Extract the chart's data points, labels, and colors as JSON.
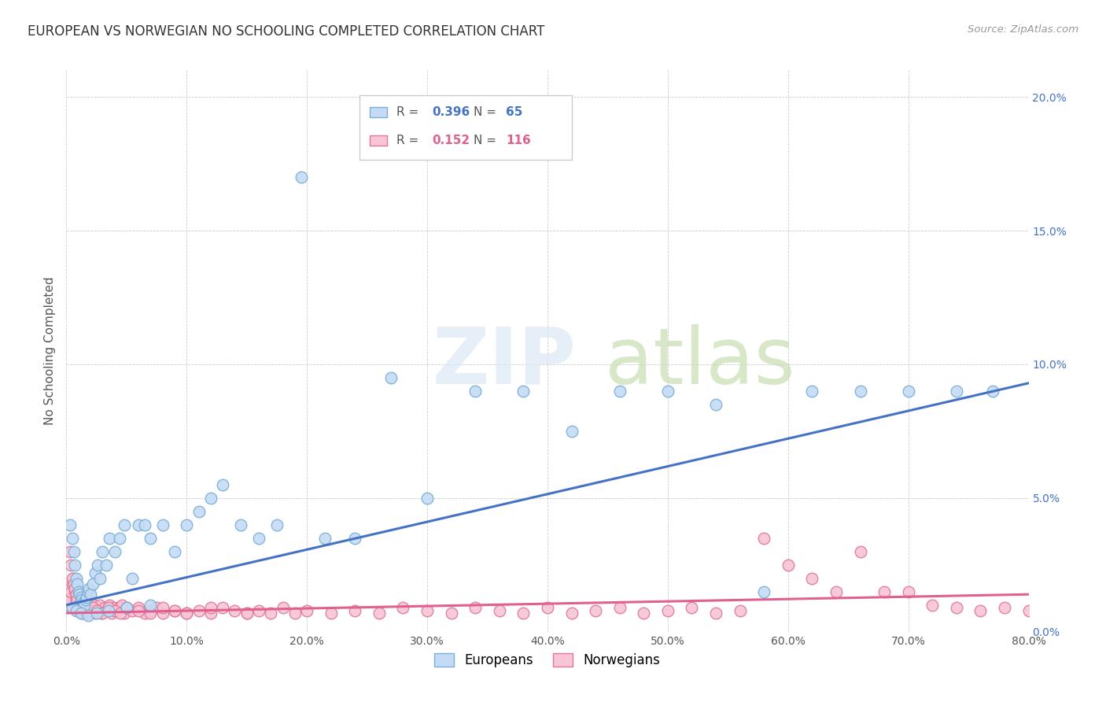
{
  "title": "EUROPEAN VS NORWEGIAN NO SCHOOLING COMPLETED CORRELATION CHART",
  "source": "Source: ZipAtlas.com",
  "xlabel_label": "Europeans",
  "xlabel_label2": "Norwegians",
  "ylabel": "No Schooling Completed",
  "xlim": [
    0,
    0.8
  ],
  "ylim": [
    0,
    0.21
  ],
  "xticks": [
    0.0,
    0.1,
    0.2,
    0.3,
    0.4,
    0.5,
    0.6,
    0.7,
    0.8
  ],
  "xtick_labels": [
    "0.0%",
    "10.0%",
    "20.0%",
    "30.0%",
    "40.0%",
    "50.0%",
    "60.0%",
    "70.0%",
    "80.0%"
  ],
  "yticks": [
    0.0,
    0.05,
    0.1,
    0.15,
    0.2
  ],
  "ytick_labels": [
    "0.0%",
    "5.0%",
    "10.0%",
    "15.0%",
    "20.0%"
  ],
  "europeans_color": "#c5dbf5",
  "europeans_edge_color": "#7bafd4",
  "norwegians_color": "#f7c5d5",
  "norwegians_edge_color": "#e07898",
  "line_blue": "#4472c4",
  "line_pink": "#e06090",
  "background_color": "#ffffff",
  "europeans_x": [
    0.003,
    0.005,
    0.006,
    0.007,
    0.008,
    0.009,
    0.01,
    0.011,
    0.012,
    0.013,
    0.014,
    0.015,
    0.016,
    0.017,
    0.018,
    0.019,
    0.02,
    0.022,
    0.024,
    0.026,
    0.028,
    0.03,
    0.033,
    0.036,
    0.04,
    0.044,
    0.048,
    0.055,
    0.06,
    0.065,
    0.07,
    0.08,
    0.09,
    0.1,
    0.11,
    0.12,
    0.13,
    0.145,
    0.16,
    0.175,
    0.195,
    0.215,
    0.24,
    0.27,
    0.3,
    0.34,
    0.38,
    0.42,
    0.46,
    0.5,
    0.54,
    0.58,
    0.62,
    0.66,
    0.7,
    0.74,
    0.77,
    0.005,
    0.008,
    0.012,
    0.018,
    0.025,
    0.035,
    0.05,
    0.07
  ],
  "europeans_y": [
    0.04,
    0.035,
    0.03,
    0.025,
    0.02,
    0.018,
    0.015,
    0.014,
    0.013,
    0.012,
    0.011,
    0.01,
    0.012,
    0.013,
    0.015,
    0.016,
    0.014,
    0.018,
    0.022,
    0.025,
    0.02,
    0.03,
    0.025,
    0.035,
    0.03,
    0.035,
    0.04,
    0.02,
    0.04,
    0.04,
    0.035,
    0.04,
    0.03,
    0.04,
    0.045,
    0.05,
    0.055,
    0.04,
    0.035,
    0.04,
    0.17,
    0.035,
    0.035,
    0.095,
    0.05,
    0.09,
    0.09,
    0.075,
    0.09,
    0.09,
    0.085,
    0.015,
    0.09,
    0.09,
    0.09,
    0.09,
    0.09,
    0.009,
    0.008,
    0.007,
    0.006,
    0.007,
    0.008,
    0.009,
    0.01
  ],
  "norwegians_x": [
    0.002,
    0.003,
    0.004,
    0.005,
    0.006,
    0.007,
    0.008,
    0.009,
    0.01,
    0.011,
    0.012,
    0.013,
    0.014,
    0.015,
    0.016,
    0.017,
    0.018,
    0.019,
    0.02,
    0.021,
    0.022,
    0.023,
    0.024,
    0.025,
    0.026,
    0.027,
    0.028,
    0.029,
    0.03,
    0.032,
    0.034,
    0.036,
    0.038,
    0.04,
    0.042,
    0.044,
    0.046,
    0.048,
    0.05,
    0.055,
    0.06,
    0.065,
    0.07,
    0.075,
    0.08,
    0.09,
    0.1,
    0.11,
    0.12,
    0.13,
    0.14,
    0.15,
    0.16,
    0.17,
    0.18,
    0.19,
    0.2,
    0.22,
    0.24,
    0.26,
    0.28,
    0.3,
    0.32,
    0.34,
    0.36,
    0.38,
    0.4,
    0.42,
    0.44,
    0.46,
    0.48,
    0.5,
    0.52,
    0.54,
    0.56,
    0.58,
    0.6,
    0.62,
    0.64,
    0.66,
    0.68,
    0.7,
    0.72,
    0.74,
    0.76,
    0.78,
    0.8,
    0.003,
    0.004,
    0.005,
    0.006,
    0.007,
    0.008,
    0.009,
    0.01,
    0.011,
    0.012,
    0.013,
    0.014,
    0.015,
    0.016,
    0.017,
    0.018,
    0.019,
    0.02,
    0.022,
    0.025,
    0.03,
    0.035,
    0.04,
    0.045,
    0.05,
    0.06,
    0.07,
    0.08,
    0.09,
    0.1,
    0.12,
    0.15
  ],
  "norwegians_y": [
    0.01,
    0.012,
    0.015,
    0.018,
    0.02,
    0.015,
    0.012,
    0.01,
    0.008,
    0.009,
    0.01,
    0.011,
    0.009,
    0.013,
    0.008,
    0.009,
    0.01,
    0.011,
    0.008,
    0.009,
    0.008,
    0.01,
    0.007,
    0.009,
    0.008,
    0.009,
    0.01,
    0.007,
    0.008,
    0.009,
    0.008,
    0.01,
    0.007,
    0.009,
    0.008,
    0.009,
    0.01,
    0.007,
    0.009,
    0.008,
    0.009,
    0.007,
    0.008,
    0.009,
    0.007,
    0.008,
    0.007,
    0.008,
    0.007,
    0.009,
    0.008,
    0.007,
    0.008,
    0.007,
    0.009,
    0.007,
    0.008,
    0.007,
    0.008,
    0.007,
    0.009,
    0.008,
    0.007,
    0.009,
    0.008,
    0.007,
    0.009,
    0.007,
    0.008,
    0.009,
    0.007,
    0.008,
    0.009,
    0.007,
    0.008,
    0.035,
    0.025,
    0.02,
    0.015,
    0.03,
    0.015,
    0.015,
    0.01,
    0.009,
    0.008,
    0.009,
    0.008,
    0.03,
    0.025,
    0.02,
    0.018,
    0.016,
    0.014,
    0.012,
    0.01,
    0.009,
    0.008,
    0.007,
    0.009,
    0.008,
    0.007,
    0.009,
    0.008,
    0.007,
    0.008,
    0.009,
    0.008,
    0.007,
    0.009,
    0.008,
    0.007,
    0.009,
    0.008,
    0.007,
    0.009,
    0.008,
    0.007,
    0.009,
    0.007
  ],
  "blue_line_x0": 0.0,
  "blue_line_y0": 0.01,
  "blue_line_x1": 0.8,
  "blue_line_y1": 0.093,
  "pink_line_x0": 0.0,
  "pink_line_y0": 0.007,
  "pink_line_x1": 0.8,
  "pink_line_y1": 0.014
}
